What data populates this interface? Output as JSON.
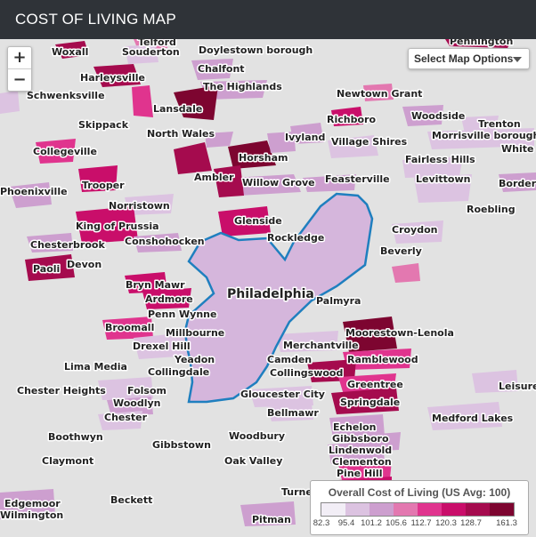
{
  "header": {
    "title": "COST OF LIVING MAP"
  },
  "controls": {
    "zoom_in": "+",
    "zoom_out": "−",
    "map_options": "Select Map Options"
  },
  "colors": {
    "boundary": "#1f7fbf",
    "philadelphia_fill": "#d5b6dc",
    "scale": [
      "#f2eef6",
      "#dcc3e1",
      "#cd9fcf",
      "#e378b0",
      "#e0348e",
      "#c90e6a",
      "#a50b4e",
      "#7d0530"
    ]
  },
  "legend": {
    "title": "Overall Cost of Living (US Avg: 100)",
    "ticks": [
      "82.3",
      "95.4",
      "101.2",
      "105.6",
      "112.7",
      "120.3",
      "128.7",
      "161.3"
    ]
  },
  "places": [
    {
      "name": "Telford"
    },
    {
      "name": "Souderton"
    },
    {
      "name": "Woxall"
    },
    {
      "name": "Doylestown borough"
    },
    {
      "name": "Pennington"
    },
    {
      "name": "Chalfont"
    },
    {
      "name": "Harleysville"
    },
    {
      "name": "The Highlands"
    },
    {
      "name": "Schwenksville"
    },
    {
      "name": "Newtown Grant"
    },
    {
      "name": "Lansdale"
    },
    {
      "name": "Richboro"
    },
    {
      "name": "Woodside"
    },
    {
      "name": "Trenton"
    },
    {
      "name": "Skippack"
    },
    {
      "name": "North Wales"
    },
    {
      "name": "Ivyland"
    },
    {
      "name": "Village Shires"
    },
    {
      "name": "Morrisville borough"
    },
    {
      "name": "Collegeville"
    },
    {
      "name": "Horsham"
    },
    {
      "name": "White"
    },
    {
      "name": "Fairless Hills"
    },
    {
      "name": "Ambler"
    },
    {
      "name": "Feasterville"
    },
    {
      "name": "Phoenixville"
    },
    {
      "name": "Trooper"
    },
    {
      "name": "Willow Grove"
    },
    {
      "name": "Levittown"
    },
    {
      "name": "Border"
    },
    {
      "name": "Norristown"
    },
    {
      "name": "Roebling"
    },
    {
      "name": "King of Prussia"
    },
    {
      "name": "Glenside"
    },
    {
      "name": "Croydon"
    },
    {
      "name": "Chesterbrook"
    },
    {
      "name": "Conshohocken"
    },
    {
      "name": "Rockledge"
    },
    {
      "name": "Beverly"
    },
    {
      "name": "Devon"
    },
    {
      "name": "Paoli"
    },
    {
      "name": "Bryn Mawr"
    },
    {
      "name": "Ardmore"
    },
    {
      "name": "Philadelphia"
    },
    {
      "name": "Palmyra"
    },
    {
      "name": "Penn Wynne"
    },
    {
      "name": "Millbourne"
    },
    {
      "name": "Moorestown-Lenola"
    },
    {
      "name": "Broomall"
    },
    {
      "name": "Drexel Hill"
    },
    {
      "name": "Merchantville"
    },
    {
      "name": "Yeadon"
    },
    {
      "name": "Camden"
    },
    {
      "name": "Ramblewood"
    },
    {
      "name": "Lima Media"
    },
    {
      "name": "Collingdale"
    },
    {
      "name": "Collingswood"
    },
    {
      "name": "Greentree"
    },
    {
      "name": "Leisure"
    },
    {
      "name": "Chester Heights"
    },
    {
      "name": "Folsom"
    },
    {
      "name": "Gloucester City"
    },
    {
      "name": "Woodlyn"
    },
    {
      "name": "Springdale"
    },
    {
      "name": "Bellmawr"
    },
    {
      "name": "Chester"
    },
    {
      "name": "Medford Lakes"
    },
    {
      "name": "Echelon"
    },
    {
      "name": "Boothwyn"
    },
    {
      "name": "Woodbury"
    },
    {
      "name": "Gibbsboro"
    },
    {
      "name": "Gibbstown"
    },
    {
      "name": "Lindenwold"
    },
    {
      "name": "Claymont"
    },
    {
      "name": "Oak Valley"
    },
    {
      "name": "Clementon"
    },
    {
      "name": "Pine Hill"
    },
    {
      "name": "Turnersville"
    },
    {
      "name": "Edgemoor"
    },
    {
      "name": "Beckett"
    },
    {
      "name": "Wilmington"
    },
    {
      "name": "Pitman"
    }
  ]
}
